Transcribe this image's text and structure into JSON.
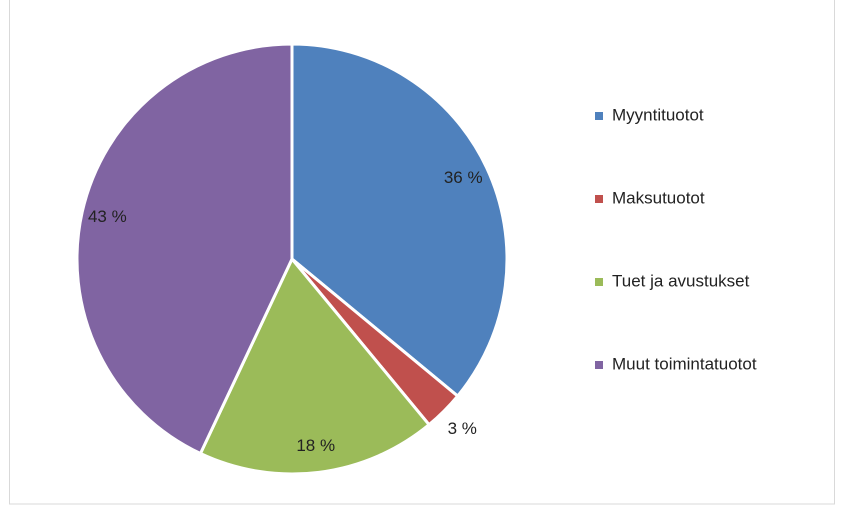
{
  "chart_data": {
    "type": "pie",
    "categories": [
      "Myyntituotot",
      "Maksutuotot",
      "Tuet ja avustukset",
      "Muut toimintatuotot"
    ],
    "values": [
      36,
      3,
      18,
      43
    ],
    "value_labels": [
      "36 %",
      "3 %",
      "18 %",
      "43 %"
    ],
    "colors": [
      "#4f81bd",
      "#c0504d",
      "#9bbb59",
      "#8064a2"
    ],
    "legend": "right"
  }
}
